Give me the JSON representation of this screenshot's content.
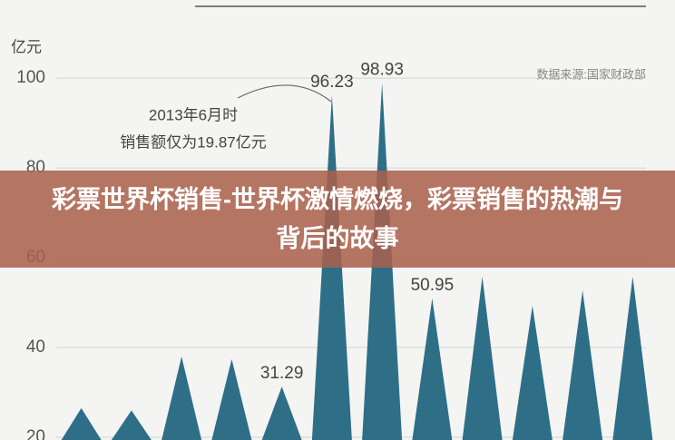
{
  "chart_data": {
    "type": "spike",
    "title": "彩票世界杯销售-世界杯激情燃烧，彩票销售的热潮与背后的故事",
    "y_label": "亿元",
    "source": "数据来源:国家财政部",
    "annotation": [
      "2013年6月时",
      "销售额仅为19.87亿元"
    ],
    "categories": [
      null,
      null,
      null,
      null,
      null,
      null,
      null,
      null,
      null,
      null,
      null,
      null
    ],
    "values": [
      26.5,
      26,
      38,
      37.4,
      31.29,
      96.23,
      98.93,
      50.95,
      55.8,
      49.3,
      52.7,
      55.8
    ],
    "value_labels": [
      null,
      null,
      null,
      null,
      "31.29",
      "96.23",
      "98.93",
      "50.95",
      null,
      null,
      null,
      null
    ],
    "color": "#2e6f87",
    "ylim": [
      19.4,
      117.4
    ],
    "yticks": [
      20,
      40,
      60,
      80,
      100
    ],
    "grid": true
  }
}
